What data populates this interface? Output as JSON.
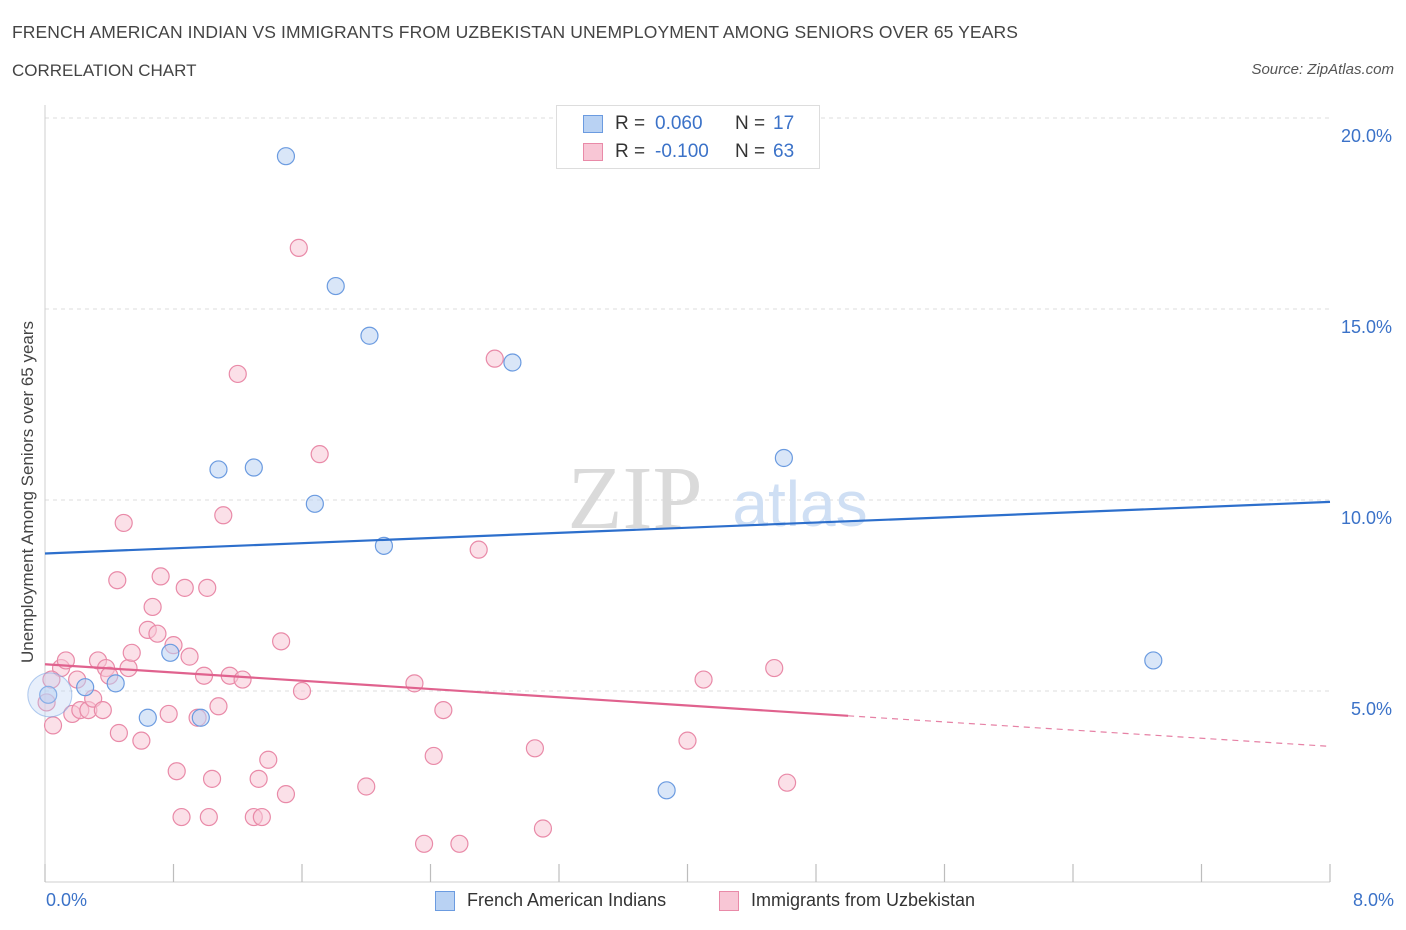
{
  "title": "FRENCH AMERICAN INDIAN VS IMMIGRANTS FROM UZBEKISTAN UNEMPLOYMENT AMONG SENIORS OVER 65 YEARS",
  "subtitle": "CORRELATION CHART",
  "source": "Source: ZipAtlas.com",
  "watermark": {
    "zip": "ZIP",
    "atlas": "atlas"
  },
  "legend": {
    "series1": {
      "r_label": "R =",
      "r_value": "0.060",
      "n_label": "N =",
      "n_value": "17"
    },
    "series2": {
      "r_label": "R =",
      "r_value": "-0.100",
      "n_label": "N =",
      "n_value": "63"
    }
  },
  "x_tick_labels": {
    "left": "0.0%",
    "right": "8.0%"
  },
  "colors": {
    "blue_fill": "#b9d2f3",
    "blue_stroke": "#6b9be0",
    "blue_line": "#2d6fcc",
    "pink_fill": "#f8c6d5",
    "pink_stroke": "#e98aa8",
    "pink_line": "#e0628e",
    "tick_label": "#3b72c8",
    "grid": "#dcdcdc"
  },
  "chart_data": {
    "type": "scatter",
    "xlabel": "",
    "ylabel": "Unemployment Among Seniors over 65 years",
    "xlim": [
      0,
      8
    ],
    "ylim": [
      0,
      20
    ],
    "y_ticks": [
      5,
      10,
      15,
      20
    ],
    "y_tick_labels": [
      "5.0%",
      "10.0%",
      "15.0%",
      "20.0%"
    ],
    "x_tick_positions": [
      0,
      0.8,
      1.6,
      2.4,
      3.2,
      4.0,
      4.8,
      5.6,
      6.4,
      7.2,
      8.0
    ],
    "grid": true,
    "legend_position": "top-center",
    "series": [
      {
        "name": "French American Indians",
        "color": "blue",
        "r": 0.06,
        "n": 17,
        "points": [
          [
            0.02,
            4.9
          ],
          [
            0.25,
            5.1
          ],
          [
            0.44,
            5.2
          ],
          [
            0.64,
            4.3
          ],
          [
            0.78,
            6.0
          ],
          [
            0.97,
            4.3
          ],
          [
            1.08,
            10.8
          ],
          [
            1.3,
            10.85
          ],
          [
            1.5,
            19.0
          ],
          [
            1.68,
            9.9
          ],
          [
            1.81,
            15.6
          ],
          [
            2.02,
            14.3
          ],
          [
            2.11,
            8.8
          ],
          [
            2.91,
            13.6
          ],
          [
            3.87,
            2.4
          ],
          [
            4.6,
            11.1
          ],
          [
            6.9,
            5.8
          ]
        ],
        "trend": {
          "x": [
            0,
            8
          ],
          "y": [
            8.6,
            9.95
          ]
        }
      },
      {
        "name": "Immigrants from Uzbekistan",
        "color": "pink",
        "r": -0.1,
        "n": 63,
        "points": [
          [
            0.01,
            4.7
          ],
          [
            0.05,
            4.1
          ],
          [
            0.1,
            5.6
          ],
          [
            0.13,
            5.8
          ],
          [
            0.17,
            4.4
          ],
          [
            0.2,
            5.3
          ],
          [
            0.22,
            4.5
          ],
          [
            0.27,
            4.5
          ],
          [
            0.3,
            4.8
          ],
          [
            0.33,
            5.8
          ],
          [
            0.36,
            4.5
          ],
          [
            0.38,
            5.6
          ],
          [
            0.4,
            5.4
          ],
          [
            0.45,
            7.9
          ],
          [
            0.46,
            3.9
          ],
          [
            0.49,
            9.4
          ],
          [
            0.52,
            5.6
          ],
          [
            0.54,
            6.0
          ],
          [
            0.6,
            3.7
          ],
          [
            0.64,
            6.6
          ],
          [
            0.67,
            7.2
          ],
          [
            0.7,
            6.5
          ],
          [
            0.72,
            8.0
          ],
          [
            0.77,
            4.4
          ],
          [
            0.8,
            6.2
          ],
          [
            0.82,
            2.9
          ],
          [
            0.85,
            1.7
          ],
          [
            0.87,
            7.7
          ],
          [
            0.9,
            5.9
          ],
          [
            0.95,
            4.3
          ],
          [
            0.99,
            5.4
          ],
          [
            1.01,
            7.7
          ],
          [
            1.02,
            1.7
          ],
          [
            1.04,
            2.7
          ],
          [
            1.08,
            4.6
          ],
          [
            1.11,
            9.6
          ],
          [
            1.15,
            5.4
          ],
          [
            1.2,
            13.3
          ],
          [
            1.23,
            5.3
          ],
          [
            1.3,
            1.7
          ],
          [
            1.33,
            2.7
          ],
          [
            1.35,
            1.7
          ],
          [
            1.39,
            3.2
          ],
          [
            1.47,
            6.3
          ],
          [
            1.5,
            2.3
          ],
          [
            1.58,
            16.6
          ],
          [
            1.6,
            5.0
          ],
          [
            1.71,
            11.2
          ],
          [
            2.0,
            2.5
          ],
          [
            2.3,
            5.2
          ],
          [
            2.36,
            1.0
          ],
          [
            2.42,
            3.3
          ],
          [
            2.48,
            4.5
          ],
          [
            2.58,
            1.0
          ],
          [
            2.7,
            8.7
          ],
          [
            2.8,
            13.7
          ],
          [
            3.05,
            3.5
          ],
          [
            3.1,
            1.4
          ],
          [
            4.0,
            3.7
          ],
          [
            4.1,
            5.3
          ],
          [
            4.54,
            5.6
          ],
          [
            4.62,
            2.6
          ],
          [
            0.04,
            5.3
          ]
        ],
        "trend": {
          "x": [
            0,
            5.0
          ],
          "y": [
            5.7,
            4.35
          ],
          "dashed_extension": {
            "x": [
              5.0,
              8.0
            ],
            "y": [
              4.35,
              3.55
            ]
          }
        }
      }
    ]
  }
}
